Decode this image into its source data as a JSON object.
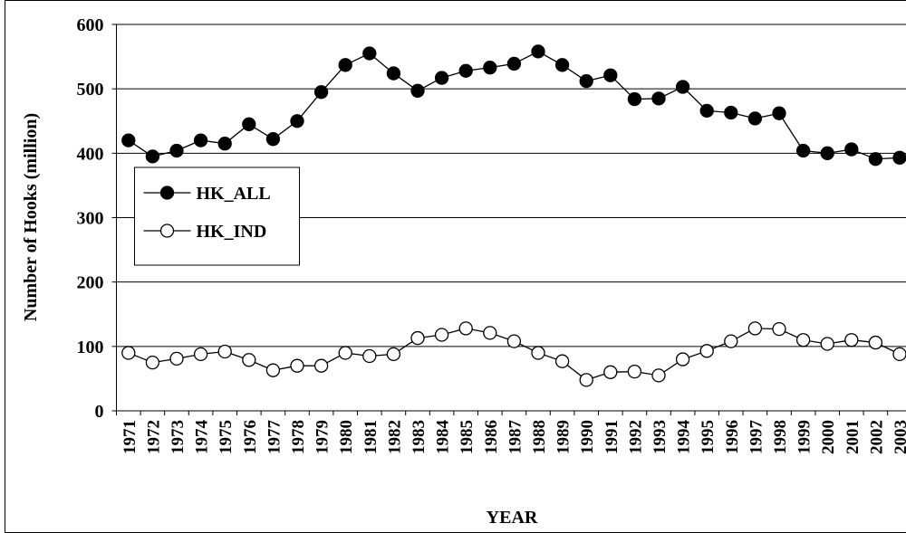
{
  "chart_data": {
    "type": "line",
    "x_label": "YEAR",
    "y_label": "Number of Hooks (million)",
    "categories": [
      "1971",
      "1972",
      "1973",
      "1974",
      "1975",
      "1976",
      "1977",
      "1978",
      "1979",
      "1980",
      "1981",
      "1982",
      "1983",
      "1984",
      "1985",
      "1986",
      "1987",
      "1988",
      "1989",
      "1990",
      "1991",
      "1992",
      "1993",
      "1994",
      "1995",
      "1996",
      "1997",
      "1998",
      "1999",
      "2000",
      "2001",
      "2002",
      "2003"
    ],
    "series": [
      {
        "name": "HK_ALL",
        "color": "#000000",
        "marker_fill": "#000000",
        "values": [
          420,
          395,
          404,
          420,
          415,
          445,
          422,
          450,
          495,
          537,
          555,
          524,
          497,
          517,
          528,
          533,
          539,
          558,
          537,
          512,
          521,
          484,
          485,
          503,
          466,
          463,
          454,
          462,
          404,
          400,
          406,
          391,
          393
        ]
      },
      {
        "name": "HK_IND",
        "color": "#000000",
        "marker_fill": "#ffffff",
        "values": [
          90,
          75,
          81,
          88,
          92,
          79,
          63,
          70,
          70,
          90,
          85,
          88,
          113,
          118,
          128,
          121,
          108,
          90,
          77,
          48,
          60,
          61,
          55,
          80,
          93,
          108,
          128,
          127,
          110,
          104,
          110,
          106,
          88
        ]
      }
    ],
    "ylim": [
      0,
      600
    ],
    "yticks": [
      0,
      100,
      200,
      300,
      400,
      500,
      600
    ],
    "grid": true,
    "legend": "left"
  }
}
